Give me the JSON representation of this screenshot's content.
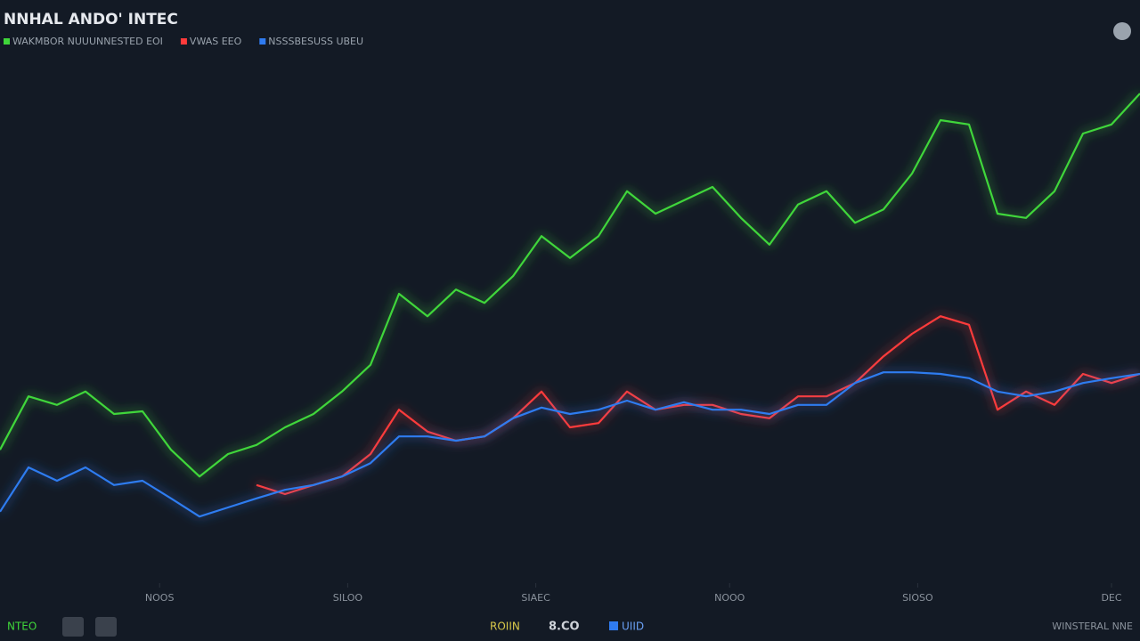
{
  "chart_data": {
    "type": "line",
    "title": "NNHAL ANDO' INTEC",
    "x": [
      0,
      2.5,
      5,
      7.5,
      10,
      12.5,
      15,
      17.5,
      20,
      22.5,
      25,
      27.5,
      30,
      32.5,
      35,
      37.5,
      40,
      42.5,
      45,
      47.5,
      50,
      52.5,
      55,
      57.5,
      60,
      62.5,
      65,
      67.5,
      70,
      72.5,
      75,
      77.5,
      80,
      82.5,
      85,
      87.5,
      90,
      92.5,
      95,
      97.5,
      100
    ],
    "xlim": [
      0,
      100
    ],
    "xticks": [
      {
        "value": 14,
        "label": "NOOS"
      },
      {
        "value": 30.5,
        "label": "SILOO"
      },
      {
        "value": 47,
        "label": "SIAEC"
      },
      {
        "value": 64,
        "label": "NOOO"
      },
      {
        "value": 80.5,
        "label": "SIOSO"
      },
      {
        "value": 97.5,
        "label": "DEC"
      }
    ],
    "ylim": [
      0,
      100
    ],
    "series": [
      {
        "name": "WAKMBOR NUUUNNESTED EOI",
        "color": "#3fd63a",
        "values": [
          25.8,
          35.8,
          34.2,
          36.7,
          32.5,
          33,
          25.8,
          20.8,
          25,
          26.7,
          30,
          32.5,
          36.7,
          41.7,
          55,
          50.8,
          55.8,
          53.3,
          58.3,
          65.8,
          61.7,
          65.8,
          74.2,
          70,
          72.5,
          75,
          69.2,
          64.2,
          71.7,
          74.2,
          68.3,
          70.8,
          77.5,
          87.5,
          86.7,
          70,
          69.2,
          74.2,
          85,
          86.7,
          92.5
        ]
      },
      {
        "name": "VWAS EEO",
        "color": "#ff3b3b",
        "values": [
          null,
          null,
          null,
          null,
          null,
          null,
          null,
          null,
          null,
          19.2,
          17.5,
          19.2,
          20.8,
          25,
          33.3,
          29.2,
          27.5,
          28.3,
          31.7,
          36.7,
          30,
          30.8,
          36.7,
          33.3,
          34.2,
          34.2,
          32.5,
          31.7,
          35.8,
          35.8,
          38.3,
          43.3,
          47.5,
          50.8,
          49.2,
          33.3,
          36.7,
          34.2,
          40,
          38.3,
          40
        ]
      },
      {
        "name": "NSSSBESUSS UBEU",
        "color": "#2f7bf0",
        "values": [
          14.2,
          22.5,
          20,
          22.5,
          19.2,
          20,
          16.7,
          13.3,
          15,
          16.7,
          18.3,
          19.2,
          20.8,
          23.3,
          28.3,
          28.3,
          27.5,
          28.3,
          31.7,
          33.7,
          32.5,
          33.3,
          35,
          33.3,
          34.7,
          33.3,
          33.3,
          32.5,
          34.2,
          34.2,
          38.3,
          40.3,
          40.3,
          40,
          39.2,
          36.7,
          35.8,
          36.7,
          38.3,
          39.2,
          40
        ]
      }
    ]
  },
  "footer": {
    "left": "NTEO",
    "center": [
      "ROIIN",
      "8.CO",
      "UIID"
    ],
    "right": "WINSTERAL NNE"
  }
}
